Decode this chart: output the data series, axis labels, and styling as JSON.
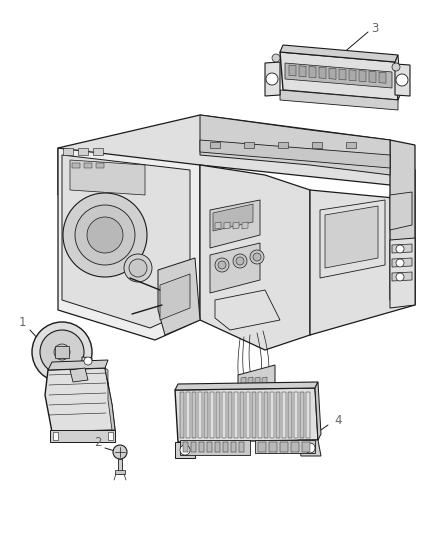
{
  "background_color": "#ffffff",
  "line_color": "#1a1a1a",
  "label_color": "#666666",
  "figsize": [
    4.38,
    5.33
  ],
  "dpi": 100,
  "img_gray": "#e8e8e8",
  "img_dark": "#c0c0c0",
  "img_mid": "#d4d4d4",
  "label_fontsize": 8.5
}
